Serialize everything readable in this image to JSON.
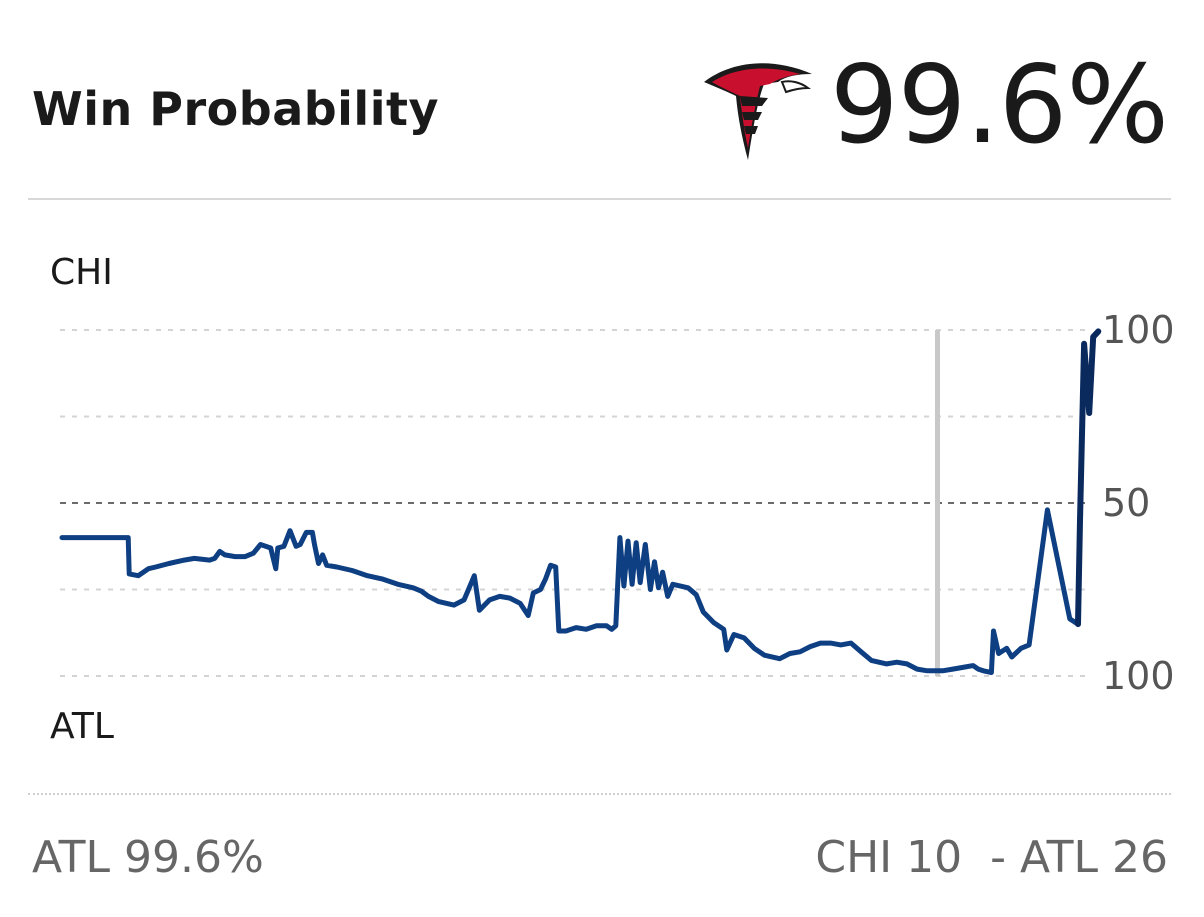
{
  "header": {
    "title": "Win Probability",
    "current_probability": "99.6%",
    "logo_icon": "atlanta-falcons-logo-icon"
  },
  "teams": {
    "top_label": "CHI",
    "bottom_label": "ATL"
  },
  "footer": {
    "left_text": "ATL 99.6%",
    "score_text": "CHI 10  - ATL 26"
  },
  "colors": {
    "line": "#0e3f82",
    "line_end": "#0a2a5e",
    "gridline": "#d4d4d4",
    "midline": "#6b6b6b",
    "marker": "#c8c8c8",
    "falcons_red": "#c8102e",
    "falcons_black": "#1a1a1a"
  },
  "chart_data": {
    "type": "line",
    "title": "Win Probability",
    "xlabel": "",
    "ylabel": "",
    "y_tick_labels": [
      {
        "value": 100,
        "label": "100"
      },
      {
        "value": 50,
        "label": "50"
      },
      {
        "value": 0,
        "label": "100"
      }
    ],
    "gridlines_dashed": [
      100,
      75,
      50,
      25,
      0
    ],
    "ylim": [
      0,
      100
    ],
    "xlim": [
      0,
      100
    ],
    "current_time_marker_x": 86.0,
    "series": [
      {
        "points": [
          [
            0,
            40
          ],
          [
            6.5,
            40
          ],
          [
            6.6,
            29.5
          ],
          [
            7.5,
            29
          ],
          [
            8.5,
            31
          ],
          [
            9.2,
            31.5
          ],
          [
            10.5,
            32.5
          ],
          [
            12,
            33.5
          ],
          [
            13,
            34
          ],
          [
            14.5,
            33.5
          ],
          [
            15,
            34
          ],
          [
            15.5,
            36
          ],
          [
            16,
            35
          ],
          [
            17,
            34.5
          ],
          [
            18,
            34.5
          ],
          [
            18.8,
            35.5
          ],
          [
            19.5,
            38
          ],
          [
            20.5,
            37
          ],
          [
            21,
            31
          ],
          [
            21.2,
            37
          ],
          [
            21.8,
            37.5
          ],
          [
            22.4,
            42
          ],
          [
            23,
            37.5
          ],
          [
            23.4,
            38
          ],
          [
            24,
            41.5
          ],
          [
            24.6,
            41.5
          ],
          [
            24.8,
            38
          ],
          [
            25.2,
            32.5
          ],
          [
            25.6,
            35
          ],
          [
            26,
            32
          ],
          [
            27,
            31.5
          ],
          [
            28.5,
            30.5
          ],
          [
            30,
            29
          ],
          [
            31.5,
            28
          ],
          [
            33,
            26.5
          ],
          [
            34.5,
            25.5
          ],
          [
            35.3,
            24.5
          ],
          [
            36,
            23
          ],
          [
            37,
            21.5
          ],
          [
            38.5,
            20.5
          ],
          [
            39.5,
            22
          ],
          [
            40.5,
            29
          ],
          [
            41,
            19
          ],
          [
            42,
            22
          ],
          [
            43,
            23
          ],
          [
            44,
            22.5
          ],
          [
            45,
            21
          ],
          [
            45.8,
            17.5
          ],
          [
            46.3,
            24
          ],
          [
            47,
            25
          ],
          [
            47.5,
            28
          ],
          [
            48,
            32
          ],
          [
            48.5,
            31.5
          ],
          [
            48.8,
            13
          ],
          [
            49.5,
            13
          ],
          [
            50.5,
            14
          ],
          [
            51.5,
            13.5
          ],
          [
            52.5,
            14.5
          ],
          [
            53.5,
            14.5
          ],
          [
            54,
            13.5
          ],
          [
            54.4,
            14.5
          ],
          [
            54.8,
            40
          ],
          [
            55.2,
            26
          ],
          [
            55.6,
            39
          ],
          [
            56,
            26.5
          ],
          [
            56.4,
            38.5
          ],
          [
            56.8,
            27
          ],
          [
            57.3,
            38
          ],
          [
            57.8,
            25
          ],
          [
            58.2,
            33
          ],
          [
            58.6,
            25.5
          ],
          [
            59,
            30
          ],
          [
            59.5,
            23
          ],
          [
            60,
            26.5
          ],
          [
            61.5,
            25.5
          ],
          [
            62.3,
            23.5
          ],
          [
            63,
            18.5
          ],
          [
            64,
            15.5
          ],
          [
            65,
            13.5
          ],
          [
            65.3,
            7.5
          ],
          [
            66,
            12
          ],
          [
            67,
            11
          ],
          [
            68,
            8
          ],
          [
            69,
            6
          ],
          [
            70.5,
            5
          ],
          [
            71.5,
            6.5
          ],
          [
            72.5,
            7
          ],
          [
            73.5,
            8.5
          ],
          [
            74.5,
            9.5
          ],
          [
            75.5,
            9.5
          ],
          [
            76.5,
            9
          ],
          [
            77.5,
            9.5
          ],
          [
            78.5,
            7
          ],
          [
            79.5,
            4.5
          ],
          [
            81,
            3.5
          ],
          [
            82,
            4
          ],
          [
            83,
            3.5
          ],
          [
            84,
            2
          ],
          [
            85,
            1.5
          ],
          [
            86.5,
            1.5
          ],
          [
            87.5,
            2
          ],
          [
            88.5,
            2.5
          ],
          [
            89.5,
            3
          ],
          [
            90,
            2
          ],
          [
            90.5,
            1.5
          ],
          [
            91.3,
            1
          ],
          [
            91.5,
            13
          ],
          [
            92,
            6.5
          ],
          [
            92.8,
            8
          ],
          [
            93.3,
            5.5
          ],
          [
            94.2,
            8
          ],
          [
            95,
            9
          ],
          [
            95.6,
            22
          ],
          [
            96.8,
            48
          ],
          [
            99,
            16.5
          ],
          [
            99.8,
            15
          ],
          [
            100,
            45
          ],
          [
            100.4,
            96
          ],
          [
            100.9,
            76
          ],
          [
            101.3,
            98
          ],
          [
            101.8,
            99.6
          ]
        ]
      }
    ]
  }
}
